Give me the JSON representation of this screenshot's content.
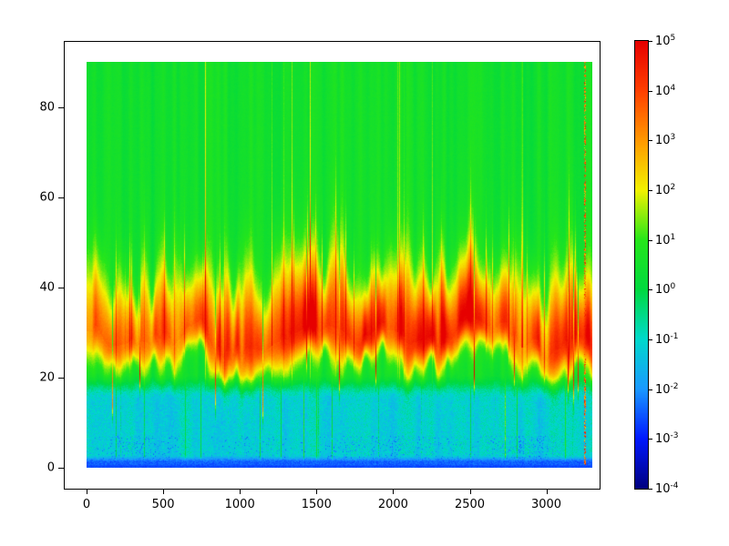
{
  "figure": {
    "background_color": "#ffffff",
    "frame_color": "#000000"
  },
  "chart_data": {
    "type": "heatmap",
    "title": "",
    "xlabel": "",
    "ylabel": "",
    "x_range": [
      0,
      3300
    ],
    "y_range": [
      0,
      90
    ],
    "x_ticks": [
      0,
      500,
      1000,
      1500,
      2000,
      2500,
      3000
    ],
    "y_ticks": [
      0,
      20,
      40,
      60,
      80
    ],
    "grid": false,
    "legend": "colorbar-right",
    "colorbar": {
      "scale": "log10",
      "min": 0.0001,
      "max": 100000,
      "exponents": [
        5,
        4,
        3,
        2,
        1,
        0,
        -1,
        -2,
        -3,
        -4
      ],
      "colormap": "jet-like rainbow",
      "stops": [
        "#000080",
        "#0019ff",
        "#1a99ff",
        "#00d9cc",
        "#00d940",
        "#26e61a",
        "#f2f200",
        "#ff9900",
        "#ff4000",
        "#e60000"
      ]
    },
    "seed": 1337,
    "structure": {
      "hot_band": {
        "y_center": 29,
        "y_span": [
          18,
          48
        ],
        "level_log10": [
          3,
          5
        ],
        "note": "intense red-orange band with flame-like vertical streaks and spikes dipping downward"
      },
      "upper_field": {
        "y_span": [
          48,
          90
        ],
        "level_log10": [
          0,
          1
        ],
        "note": "green field with faint vertical striping; occasional yellow-green streaks reach the top"
      },
      "cool_layer": {
        "y_span": [
          2,
          18
        ],
        "level_log10": [
          -1.8,
          -0.5
        ],
        "note": "cyan layer with scattered green/yellow patches and light-blue speckle"
      },
      "bottom_strip": {
        "y_span": [
          0,
          2
        ],
        "level_log10": [
          -3,
          -2
        ],
        "note": "blue strip along the bottom edge"
      },
      "red_streak_x": 3250
    }
  }
}
